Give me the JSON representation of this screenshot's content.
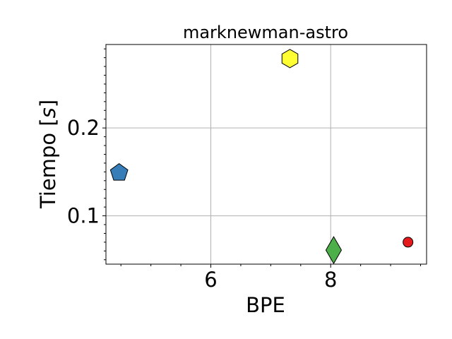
{
  "chart_data": {
    "type": "scatter",
    "title": "marknewman-astro",
    "xlabel": "BPE",
    "ylabel": "Tiempo [s]",
    "ylabel_prefix": "Tiempo [",
    "ylabel_unit": "s",
    "ylabel_suffix": "]",
    "xlim": [
      4.25,
      9.6
    ],
    "ylim": [
      0.045,
      0.295
    ],
    "grid": true,
    "x_ticks": [
      {
        "value": 6,
        "label": "6"
      },
      {
        "value": 8,
        "label": "8"
      }
    ],
    "y_ticks": [
      {
        "value": 0.1,
        "label": "0.1"
      },
      {
        "value": 0.2,
        "label": "0.2"
      }
    ],
    "x_minor_ticks": [
      4.5,
      5.0,
      5.5,
      6.5,
      7.0,
      7.5,
      8.5,
      9.0,
      9.5
    ],
    "y_minor_ticks": [
      0.05,
      0.06,
      0.07,
      0.08,
      0.09,
      0.11,
      0.12,
      0.13,
      0.14,
      0.15,
      0.16,
      0.17,
      0.18,
      0.19,
      0.21,
      0.22,
      0.23,
      0.24,
      0.25,
      0.26,
      0.27,
      0.28,
      0.29
    ],
    "points": [
      {
        "x": 4.47,
        "y": 0.149,
        "marker": "pentagon",
        "color": "#377eb8"
      },
      {
        "x": 7.32,
        "y": 0.279,
        "marker": "hexagon",
        "color": "#ffff33"
      },
      {
        "x": 8.05,
        "y": 0.061,
        "marker": "diamond",
        "color": "#4daf4a"
      },
      {
        "x": 9.29,
        "y": 0.07,
        "marker": "circle",
        "color": "#e41a1c"
      }
    ]
  }
}
